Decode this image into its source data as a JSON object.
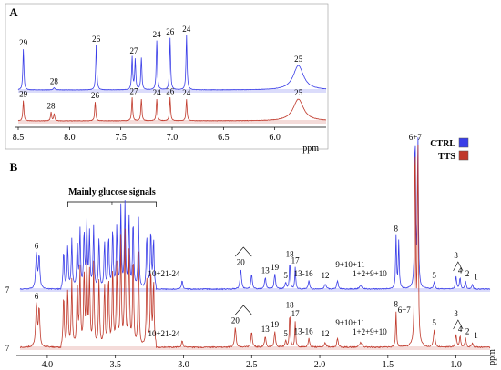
{
  "chart_data": [
    {
      "type": "line",
      "panel_label": "A",
      "xlabel": "ppm",
      "xlim": [
        8.5,
        5.5
      ],
      "x_reversed": true,
      "ticks": [
        "8.5",
        "8.0",
        "7.5",
        "7.0",
        "6.5",
        "6.0",
        "ppm"
      ],
      "tick_values": [
        8.5,
        8.0,
        7.5,
        7.0,
        6.5,
        6.0
      ],
      "series": [
        {
          "color": "#3a3ee8",
          "peaks": [
            {
              "ppm": 8.45,
              "h": 0.75,
              "w": 0.006,
              "label": "29"
            },
            {
              "ppm": 8.15,
              "h": 0.04,
              "w": 0.01,
              "label": "28"
            },
            {
              "ppm": 7.74,
              "h": 0.82,
              "w": 0.006,
              "label": "26"
            },
            {
              "ppm": 7.39,
              "h": 0.6,
              "w": 0.006,
              "label": "27"
            },
            {
              "ppm": 7.36,
              "h": 0.55,
              "w": 0.006,
              "label": ""
            },
            {
              "ppm": 7.3,
              "h": 0.58,
              "w": 0.006,
              "label": ""
            },
            {
              "ppm": 7.15,
              "h": 0.9,
              "w": 0.006,
              "label": "24"
            },
            {
              "ppm": 7.02,
              "h": 0.95,
              "w": 0.006,
              "label": "26"
            },
            {
              "ppm": 6.86,
              "h": 1.0,
              "w": 0.006,
              "label": "24"
            },
            {
              "ppm": 5.77,
              "h": 0.45,
              "w": 0.06,
              "label": "25"
            }
          ]
        },
        {
          "color": "#c0392b",
          "peaks": [
            {
              "ppm": 8.45,
              "h": 0.28,
              "w": 0.006,
              "label": "29"
            },
            {
              "ppm": 8.18,
              "h": 0.12,
              "w": 0.006,
              "label": "28"
            },
            {
              "ppm": 8.15,
              "h": 0.1,
              "w": 0.006,
              "label": ""
            },
            {
              "ppm": 7.75,
              "h": 0.26,
              "w": 0.006,
              "label": "26"
            },
            {
              "ppm": 7.39,
              "h": 0.32,
              "w": 0.006,
              "label": "27"
            },
            {
              "ppm": 7.3,
              "h": 0.3,
              "w": 0.006,
              "label": ""
            },
            {
              "ppm": 7.15,
              "h": 0.3,
              "w": 0.006,
              "label": "24"
            },
            {
              "ppm": 7.02,
              "h": 0.32,
              "w": 0.006,
              "label": "26"
            },
            {
              "ppm": 6.86,
              "h": 0.3,
              "w": 0.006,
              "label": "24"
            },
            {
              "ppm": 5.77,
              "h": 0.3,
              "w": 0.06,
              "label": "25"
            }
          ]
        }
      ]
    },
    {
      "type": "line",
      "panel_label": "B",
      "xlabel": "ppm",
      "xlim": [
        4.2,
        0.75
      ],
      "x_reversed": true,
      "ticks": [
        "4.0",
        "3.5",
        "3.0",
        "2.5",
        "2.0",
        "1.5",
        "1.0",
        "ppm"
      ],
      "tick_values": [
        4.0,
        3.5,
        3.0,
        2.5,
        2.0,
        1.5,
        1.0
      ],
      "legend": [
        {
          "name": "CTRL",
          "color": "#3a3ee8"
        },
        {
          "name": "TTS",
          "color": "#c0392b"
        }
      ],
      "legend_position": "top-right",
      "annotation": "Mainly glucose signals",
      "annotation_range": [
        3.85,
        3.2
      ],
      "series": [
        {
          "color": "#3a3ee8",
          "side_label": "7",
          "peaks": [
            {
              "ppm": 4.08,
              "h": 0.22,
              "w": 0.006,
              "label": "6"
            },
            {
              "ppm": 4.06,
              "h": 0.2,
              "w": 0.006,
              "label": ""
            },
            {
              "ppm": 3.01,
              "h": 0.05,
              "w": 0.006,
              "label": "10+21-24"
            },
            {
              "ppm": 2.58,
              "h": 0.12,
              "w": 0.006,
              "label": "20"
            },
            {
              "ppm": 2.5,
              "h": 0.09,
              "w": 0.006,
              "label": ""
            },
            {
              "ppm": 2.4,
              "h": 0.07,
              "w": 0.006,
              "label": "13"
            },
            {
              "ppm": 2.33,
              "h": 0.09,
              "w": 0.006,
              "label": "19"
            },
            {
              "ppm": 2.25,
              "h": 0.04,
              "w": 0.006,
              "label": "5"
            },
            {
              "ppm": 2.22,
              "h": 0.17,
              "w": 0.004,
              "label": "18"
            },
            {
              "ppm": 2.18,
              "h": 0.13,
              "w": 0.004,
              "label": "17"
            },
            {
              "ppm": 2.08,
              "h": 0.05,
              "w": 0.006,
              "label": "13-16"
            },
            {
              "ppm": 1.96,
              "h": 0.03,
              "w": 0.008,
              "label": "12"
            },
            {
              "ppm": 1.87,
              "h": 0.05,
              "w": 0.006,
              "label": "9+10+11"
            },
            {
              "ppm": 1.7,
              "h": 0.02,
              "w": 0.01,
              "label": "1+2+9+10"
            },
            {
              "ppm": 1.44,
              "h": 0.32,
              "w": 0.004,
              "label": "8"
            },
            {
              "ppm": 1.42,
              "h": 0.3,
              "w": 0.004,
              "label": ""
            },
            {
              "ppm": 1.3,
              "h": 1.0,
              "w": 0.004,
              "label": "6+7"
            },
            {
              "ppm": 1.28,
              "h": 0.95,
              "w": 0.004,
              "label": ""
            },
            {
              "ppm": 1.16,
              "h": 0.04,
              "w": 0.006,
              "label": "5"
            },
            {
              "ppm": 1.0,
              "h": 0.08,
              "w": 0.005,
              "label": "3"
            },
            {
              "ppm": 0.97,
              "h": 0.07,
              "w": 0.005,
              "label": "4"
            },
            {
              "ppm": 0.93,
              "h": 0.05,
              "w": 0.005,
              "label": "2"
            },
            {
              "ppm": 0.88,
              "h": 0.03,
              "w": 0.005,
              "label": "1"
            }
          ]
        },
        {
          "color": "#c0392b",
          "side_label": "7",
          "peaks": [
            {
              "ppm": 4.08,
              "h": 0.2,
              "w": 0.006,
              "label": "6"
            },
            {
              "ppm": 4.06,
              "h": 0.18,
              "w": 0.006,
              "label": ""
            },
            {
              "ppm": 3.01,
              "h": 0.03,
              "w": 0.006,
              "label": "10+21-24"
            },
            {
              "ppm": 2.62,
              "h": 0.09,
              "w": 0.006,
              "label": "20"
            },
            {
              "ppm": 2.5,
              "h": 0.07,
              "w": 0.006,
              "label": ""
            },
            {
              "ppm": 2.4,
              "h": 0.05,
              "w": 0.006,
              "label": "13"
            },
            {
              "ppm": 2.33,
              "h": 0.07,
              "w": 0.006,
              "label": "19"
            },
            {
              "ppm": 2.25,
              "h": 0.03,
              "w": 0.006,
              "label": "5"
            },
            {
              "ppm": 2.22,
              "h": 0.16,
              "w": 0.004,
              "label": "18"
            },
            {
              "ppm": 2.18,
              "h": 0.12,
              "w": 0.004,
              "label": "17"
            },
            {
              "ppm": 2.08,
              "h": 0.04,
              "w": 0.006,
              "label": "13-16"
            },
            {
              "ppm": 1.96,
              "h": 0.02,
              "w": 0.008,
              "label": "12"
            },
            {
              "ppm": 1.87,
              "h": 0.04,
              "w": 0.006,
              "label": "9+10+11"
            },
            {
              "ppm": 1.7,
              "h": 0.02,
              "w": 0.01,
              "label": "1+2+9+10"
            },
            {
              "ppm": 1.44,
              "h": 0.16,
              "w": 0.004,
              "label": "8"
            },
            {
              "ppm": 1.3,
              "h": 1.0,
              "w": 0.004,
              "label": "6+7"
            },
            {
              "ppm": 1.28,
              "h": 0.95,
              "w": 0.004,
              "label": ""
            },
            {
              "ppm": 1.16,
              "h": 0.08,
              "w": 0.006,
              "label": "5"
            },
            {
              "ppm": 1.0,
              "h": 0.06,
              "w": 0.005,
              "label": "3"
            },
            {
              "ppm": 0.97,
              "h": 0.05,
              "w": 0.005,
              "label": "4"
            },
            {
              "ppm": 0.93,
              "h": 0.04,
              "w": 0.005,
              "label": "2"
            },
            {
              "ppm": 0.88,
              "h": 0.02,
              "w": 0.005,
              "label": "1"
            }
          ]
        }
      ]
    }
  ]
}
